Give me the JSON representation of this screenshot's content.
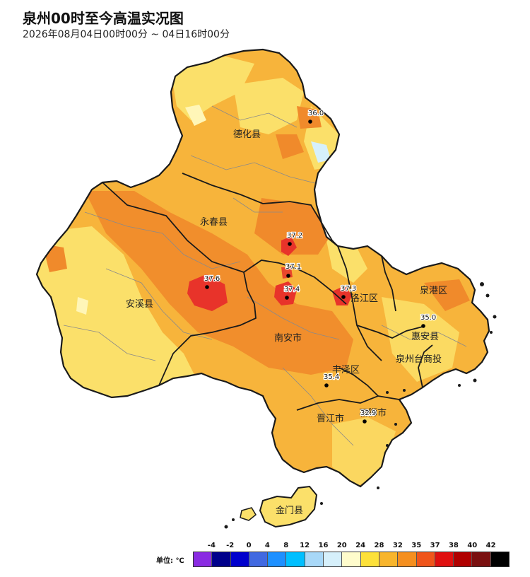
{
  "title": "泉州00时至今高温实况图",
  "subtitle": "2026年08月04日00时00分 ~ 04日16时00分",
  "colors": {
    "fill_light": "#fbe06a",
    "fill_orange": "#f7b43b",
    "fill_darkorange": "#f08a2b",
    "fill_red": "#e8332a",
    "fill_pale": "#fff6b8",
    "boundary": "#1a1a1a",
    "inner_boundary": "#8a8a8a"
  },
  "districts": [
    {
      "name": "德化县"
    },
    {
      "name": "永春县"
    },
    {
      "name": "安溪县"
    },
    {
      "name": "南安市"
    },
    {
      "name": "洛江区"
    },
    {
      "name": "泉港区"
    },
    {
      "name": "惠安县"
    },
    {
      "name": "泉州台商投"
    },
    {
      "name": "丰泽区"
    },
    {
      "name": "晋江市"
    },
    {
      "name": "石狮市"
    },
    {
      "name": "金门县"
    }
  ],
  "stations": [
    {
      "value": "36.0"
    },
    {
      "value": "37.2"
    },
    {
      "value": "37.1"
    },
    {
      "value": "37.6"
    },
    {
      "value": "37.4"
    },
    {
      "value": "37.3"
    },
    {
      "value": "35.0"
    },
    {
      "value": "35.4"
    },
    {
      "value": "32.9"
    }
  ],
  "legend": {
    "unit_label": "单位: ℃",
    "ticks": [
      "-4",
      "-2",
      "0",
      "4",
      "8",
      "12",
      "16",
      "20",
      "24",
      "28",
      "32",
      "35",
      "37",
      "38",
      "40",
      "42"
    ],
    "swatches": [
      "#8a2be2",
      "#00008b",
      "#0000cd",
      "#4169e1",
      "#1e90ff",
      "#00bfff",
      "#a8d8f8",
      "#d6f0fb",
      "#fffccc",
      "#fde13a",
      "#f8b52c",
      "#f58f1f",
      "#f0551b",
      "#e01010",
      "#b00000",
      "#7a1010",
      "#000000"
    ]
  }
}
